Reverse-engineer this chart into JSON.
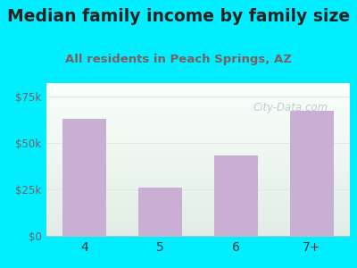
{
  "title": "Median family income by family size",
  "subtitle": "All residents in Peach Springs, AZ",
  "categories": [
    "4",
    "5",
    "6",
    "7+"
  ],
  "values": [
    63000,
    26000,
    43000,
    67000
  ],
  "bar_color": "#c9afd4",
  "bg_outer": "#00eeff",
  "title_color": "#222222",
  "subtitle_color": "#7a6060",
  "ytick_labels": [
    "$0",
    "$25k",
    "$50k",
    "$75k"
  ],
  "ytick_values": [
    0,
    25000,
    50000,
    75000
  ],
  "ylim": [
    0,
    82000
  ],
  "ytick_color": "#7a6060",
  "xtick_color": "#333333",
  "watermark": "City-Data.com",
  "watermark_color": "#b8c4cc",
  "grid_color": "#e0e8e0",
  "title_fontsize": 13.5,
  "subtitle_fontsize": 9.5,
  "bg_plot_top": "#e2ede8",
  "bg_plot_bottom": "#f8fffa"
}
